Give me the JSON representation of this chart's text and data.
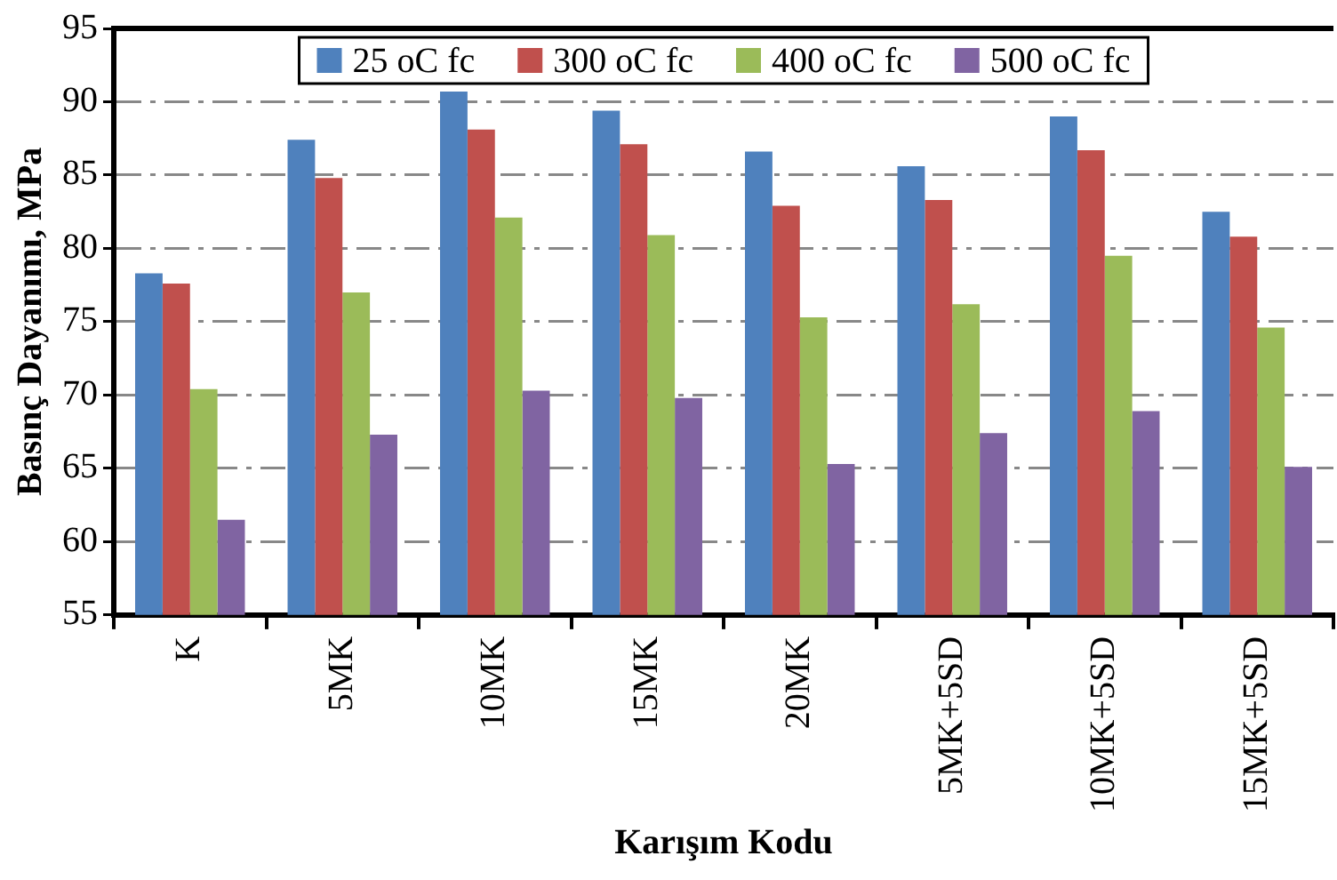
{
  "chart_data": {
    "type": "bar",
    "xlabel": "Karışım Kodu",
    "ylabel": "Basınç Dayanımı, MPa",
    "categories": [
      "K",
      "5MK",
      "10MK",
      "15MK",
      "20MK",
      "5MK+5SD",
      "10MK+5SD",
      "15MK+5SD"
    ],
    "series": [
      {
        "name": "25 oC fc",
        "color": "#4f81bd",
        "values": [
          78.3,
          87.4,
          90.7,
          89.4,
          86.6,
          85.6,
          89.0,
          82.5
        ]
      },
      {
        "name": "300 oC fc",
        "color": "#c0504d",
        "values": [
          77.6,
          84.8,
          88.1,
          87.1,
          82.9,
          83.3,
          86.7,
          80.8
        ]
      },
      {
        "name": "400 oC fc",
        "color": "#9bbb59",
        "values": [
          70.4,
          77.0,
          82.1,
          80.9,
          75.3,
          76.2,
          79.5,
          74.6
        ]
      },
      {
        "name": "500 oC fc",
        "color": "#8064a2",
        "values": [
          61.5,
          67.3,
          70.3,
          69.8,
          65.3,
          67.4,
          68.9,
          65.1
        ]
      }
    ],
    "ylim": [
      55,
      95
    ],
    "yticks": [
      55,
      60,
      65,
      70,
      75,
      80,
      85,
      90,
      95
    ],
    "grid": "y",
    "legend": "top"
  }
}
